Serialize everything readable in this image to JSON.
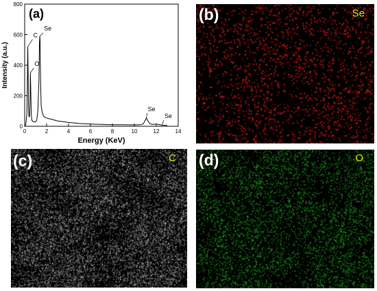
{
  "panels": {
    "a": {
      "label": "(a)"
    },
    "b": {
      "label": "(b)",
      "element": "Se",
      "dot_color": "#d01818"
    },
    "c": {
      "label": "(c)",
      "element": "C",
      "dot_color": "#f0f0f0"
    },
    "d": {
      "label": "(d)",
      "element": "O",
      "dot_color": "#22b022"
    }
  },
  "chart_data": {
    "type": "line",
    "title": "",
    "xlabel": "Energy (KeV)",
    "ylabel": "Intensity (a.u.)",
    "xlim": [
      0,
      14
    ],
    "ylim": [
      0,
      800
    ],
    "xticks": [
      0,
      2,
      4,
      6,
      8,
      10,
      12,
      14
    ],
    "yticks": [
      0,
      200,
      400,
      600,
      800
    ],
    "grid": false,
    "series": [
      {
        "x": [
          0.0,
          0.1,
          0.2,
          0.25,
          0.28,
          0.3,
          0.35,
          0.4,
          0.45,
          0.5,
          0.52,
          0.55,
          0.6,
          0.65,
          0.7,
          0.8,
          0.9,
          1.0,
          1.1,
          1.2,
          1.3,
          1.35,
          1.38,
          1.4,
          1.45,
          1.5,
          1.6,
          1.7,
          1.8,
          2.0,
          2.2,
          2.5,
          3.0,
          3.5,
          4.0,
          4.5,
          5.0,
          6.0,
          7.0,
          8.0,
          9.0,
          10.0,
          10.5,
          10.8,
          11.0,
          11.1,
          11.2,
          11.4,
          11.6,
          12.0,
          12.5,
          13.0
        ],
        "y": [
          0,
          10,
          80,
          300,
          520,
          430,
          120,
          60,
          70,
          200,
          350,
          260,
          80,
          40,
          35,
          30,
          28,
          30,
          40,
          100,
          300,
          550,
          590,
          570,
          300,
          140,
          90,
          70,
          60,
          55,
          50,
          45,
          35,
          30,
          25,
          22,
          18,
          15,
          12,
          10,
          10,
          9,
          10,
          15,
          40,
          55,
          40,
          18,
          12,
          15,
          8,
          5
        ]
      }
    ],
    "annotations": [
      {
        "text": "C",
        "x": 0.28,
        "y": 520
      },
      {
        "text": "O",
        "x": 0.52,
        "y": 350
      },
      {
        "text": "Se",
        "x": 1.38,
        "y": 590
      },
      {
        "text": "Se",
        "x": 11.1,
        "y": 55
      },
      {
        "text": "Se",
        "x": 12.5,
        "y": 8
      }
    ]
  }
}
